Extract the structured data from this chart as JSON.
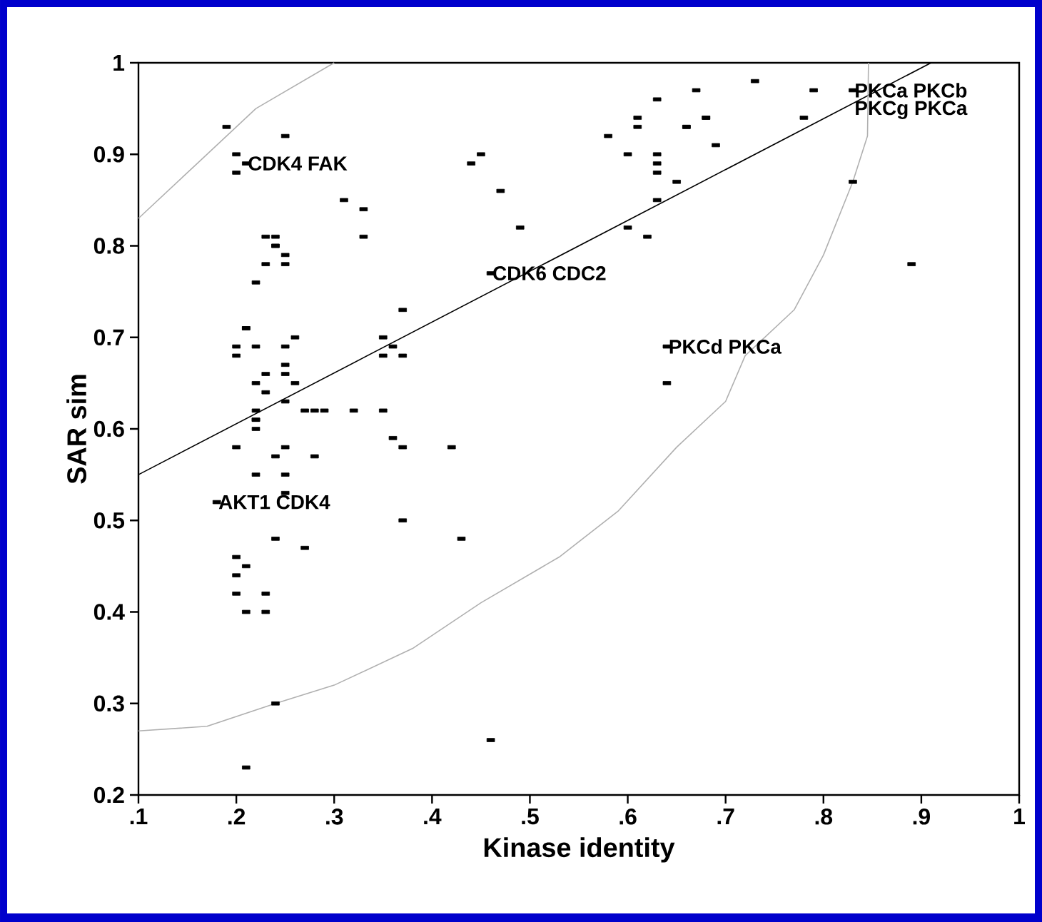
{
  "chart_data": {
    "type": "scatter",
    "xlabel": "Kinase identity",
    "ylabel": "SAR sim",
    "xlim": [
      0.1,
      1
    ],
    "ylim": [
      0.2,
      1
    ],
    "xticks": [
      {
        "value": 0.1,
        "label": ".1"
      },
      {
        "value": 0.2,
        "label": ".2"
      },
      {
        "value": 0.3,
        "label": ".3"
      },
      {
        "value": 0.4,
        "label": ".4"
      },
      {
        "value": 0.5,
        "label": ".5"
      },
      {
        "value": 0.6,
        "label": ".6"
      },
      {
        "value": 0.7,
        "label": ".7"
      },
      {
        "value": 0.8,
        "label": ".8"
      },
      {
        "value": 0.9,
        "label": ".9"
      },
      1
    ],
    "yticks": [
      0.2,
      0.3,
      0.4,
      0.5,
      0.6,
      0.7,
      0.8,
      0.9,
      1
    ],
    "series": [
      {
        "type": "scatter",
        "marker": "square",
        "color": "#000000",
        "x": [
          0.19,
          0.25,
          0.2,
          0.2,
          0.21,
          0.31,
          0.33,
          0.33,
          0.23,
          0.24,
          0.24,
          0.24,
          0.25,
          0.23,
          0.25,
          0.22,
          0.21,
          0.21,
          0.2,
          0.2,
          0.22,
          0.26,
          0.25,
          0.25,
          0.22,
          0.23,
          0.25,
          0.26,
          0.23,
          0.22,
          0.25,
          0.22,
          0.35,
          0.37,
          0.35,
          0.36,
          0.37,
          0.44,
          0.45,
          0.47,
          0.49,
          0.46,
          0.27,
          0.28,
          0.29,
          0.32,
          0.35,
          0.73,
          0.79,
          0.83,
          0.67,
          0.63,
          0.58,
          0.61,
          0.61,
          0.66,
          0.66,
          0.68,
          0.68,
          0.69,
          0.78,
          0.6,
          0.63,
          0.63,
          0.63,
          0.65,
          0.63,
          0.6,
          0.62,
          0.83,
          0.89,
          0.64,
          0.64,
          0.2,
          0.22,
          0.22,
          0.24,
          0.25,
          0.28,
          0.36,
          0.37,
          0.42,
          0.22,
          0.25,
          0.25,
          0.18,
          0.37,
          0.24,
          0.43,
          0.27,
          0.2,
          0.21,
          0.2,
          0.2,
          0.21,
          0.23,
          0.23,
          0.24,
          0.21,
          0.46
        ],
        "values": [
          0.93,
          0.92,
          0.9,
          0.88,
          0.89,
          0.85,
          0.84,
          0.81,
          0.81,
          0.81,
          0.8,
          0.8,
          0.79,
          0.78,
          0.78,
          0.76,
          0.71,
          0.71,
          0.69,
          0.68,
          0.69,
          0.7,
          0.69,
          0.67,
          0.65,
          0.66,
          0.66,
          0.65,
          0.64,
          0.62,
          0.63,
          0.61,
          0.7,
          0.73,
          0.68,
          0.69,
          0.68,
          0.89,
          0.9,
          0.86,
          0.82,
          0.77,
          0.62,
          0.62,
          0.62,
          0.62,
          0.62,
          0.98,
          0.97,
          0.97,
          0.97,
          0.96,
          0.92,
          0.94,
          0.93,
          0.93,
          0.93,
          0.94,
          0.94,
          0.91,
          0.94,
          0.9,
          0.9,
          0.89,
          0.88,
          0.87,
          0.85,
          0.82,
          0.81,
          0.87,
          0.78,
          0.69,
          0.65,
          0.58,
          0.61,
          0.6,
          0.57,
          0.58,
          0.57,
          0.59,
          0.58,
          0.58,
          0.55,
          0.55,
          0.53,
          0.52,
          0.5,
          0.48,
          0.48,
          0.47,
          0.46,
          0.45,
          0.44,
          0.42,
          0.4,
          0.4,
          0.42,
          0.3,
          0.23,
          0.26
        ]
      },
      {
        "type": "line",
        "color": "#000000",
        "x": [
          0.1,
          0.91
        ],
        "values": [
          0.55,
          1.0
        ]
      },
      {
        "type": "line",
        "color": "#b0b0b0",
        "x": [
          0.1,
          0.16,
          0.22,
          0.3
        ],
        "values": [
          0.83,
          0.89,
          0.95,
          1.0
        ]
      },
      {
        "type": "line",
        "color": "#b0b0b0",
        "x": [
          0.1,
          0.17,
          0.24,
          0.3,
          0.38,
          0.45,
          0.53,
          0.59,
          0.65,
          0.7,
          0.72,
          0.77,
          0.8,
          0.83,
          0.845,
          0.846
        ],
        "values": [
          0.27,
          0.275,
          0.3,
          0.32,
          0.36,
          0.41,
          0.46,
          0.51,
          0.58,
          0.63,
          0.68,
          0.73,
          0.79,
          0.87,
          0.92,
          1.0
        ]
      }
    ],
    "annotations": [
      {
        "text": "CDK4 FAK",
        "x": 0.21,
        "y": 0.89
      },
      {
        "text": "CDK6 CDC2",
        "x": 0.46,
        "y": 0.77
      },
      {
        "text": "PKCd PKCa",
        "x": 0.64,
        "y": 0.69
      },
      {
        "text": "AKT1 CDK4",
        "x": 0.18,
        "y": 0.52
      },
      {
        "text": "PKCa PKCb",
        "x": 0.83,
        "y": 0.97
      },
      "PKCg PKCa"
    ]
  }
}
